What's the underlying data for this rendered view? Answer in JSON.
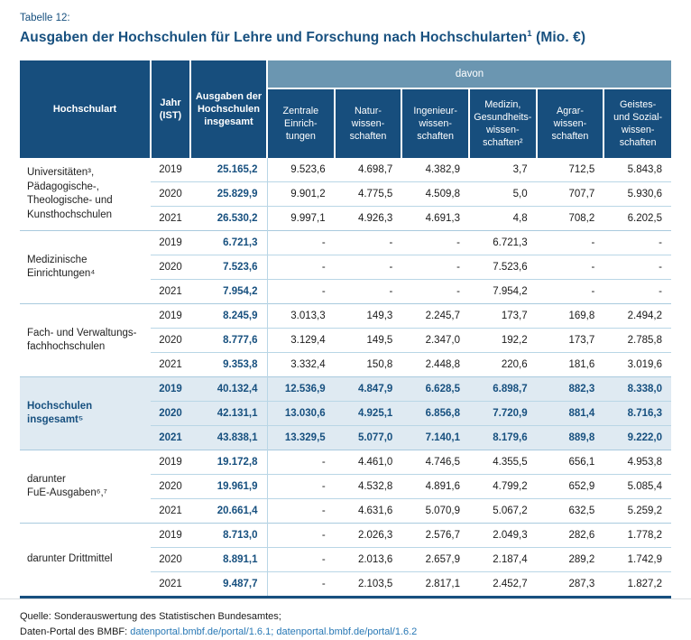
{
  "page": {
    "kicker": "Tabelle 12:",
    "title": "Ausgaben der Hochschulen für Lehre und Forschung nach Hochschularten",
    "title_sup": "1",
    "title_suffix": " (Mio. €)"
  },
  "colors": {
    "header_navy": "#174E7D",
    "davon_band": "#6B96B1",
    "highlight_row": "#dfeaf2",
    "separator_line": "#b9d6e6",
    "accent_text": "#17507F",
    "link_blue": "#2878B5"
  },
  "table": {
    "header": {
      "hochschulart": "Hochschulart",
      "jahr": "Jahr\n(IST)",
      "ausgaben": "Ausgaben der\nHochschulen\ninsgesamt",
      "davon": "davon",
      "columns": [
        "Zentrale\nEinrich-\ntungen",
        "Natur-\nwissen-\nschaften",
        "Ingenieur-\nwissen-\nschaften",
        "Medizin,\nGesundheits-\nwissen-\nschaften²",
        "Agrar-\nwissen-\nschaften",
        "Geistes-\nund Sozial-\nwissen-\nschaften"
      ]
    },
    "groups": [
      {
        "label": "Universitäten³,\nPädagogische-,\nTheologische- und\nKunsthochschulen",
        "highlight": false,
        "rows": [
          {
            "year": "2019",
            "values": [
              "25.165,2",
              "9.523,6",
              "4.698,7",
              "4.382,9",
              "3,7",
              "712,5",
              "5.843,8"
            ]
          },
          {
            "year": "2020",
            "values": [
              "25.829,9",
              "9.901,2",
              "4.775,5",
              "4.509,8",
              "5,0",
              "707,7",
              "5.930,6"
            ]
          },
          {
            "year": "2021",
            "values": [
              "26.530,2",
              "9.997,1",
              "4.926,3",
              "4.691,3",
              "4,8",
              "708,2",
              "6.202,5"
            ]
          }
        ]
      },
      {
        "label": "Medizinische\nEinrichtungen⁴",
        "highlight": false,
        "rows": [
          {
            "year": "2019",
            "values": [
              "6.721,3",
              "-",
              "-",
              "-",
              "6.721,3",
              "-",
              "-"
            ]
          },
          {
            "year": "2020",
            "values": [
              "7.523,6",
              "-",
              "-",
              "-",
              "7.523,6",
              "-",
              "-"
            ]
          },
          {
            "year": "2021",
            "values": [
              "7.954,2",
              "-",
              "-",
              "-",
              "7.954,2",
              "-",
              "-"
            ]
          }
        ]
      },
      {
        "label": "Fach- und Verwaltungs-\nfachhochschulen",
        "highlight": false,
        "rows": [
          {
            "year": "2019",
            "values": [
              "8.245,9",
              "3.013,3",
              "149,3",
              "2.245,7",
              "173,7",
              "169,8",
              "2.494,2"
            ]
          },
          {
            "year": "2020",
            "values": [
              "8.777,6",
              "3.129,4",
              "149,5",
              "2.347,0",
              "192,2",
              "173,7",
              "2.785,8"
            ]
          },
          {
            "year": "2021",
            "values": [
              "9.353,8",
              "3.332,4",
              "150,8",
              "2.448,8",
              "220,6",
              "181,6",
              "3.019,6"
            ]
          }
        ]
      },
      {
        "label": "Hochschulen insgesamt⁵",
        "highlight": true,
        "rows": [
          {
            "year": "2019",
            "values": [
              "40.132,4",
              "12.536,9",
              "4.847,9",
              "6.628,5",
              "6.898,7",
              "882,3",
              "8.338,0"
            ]
          },
          {
            "year": "2020",
            "values": [
              "42.131,1",
              "13.030,6",
              "4.925,1",
              "6.856,8",
              "7.720,9",
              "881,4",
              "8.716,3"
            ]
          },
          {
            "year": "2021",
            "values": [
              "43.838,1",
              "13.329,5",
              "5.077,0",
              "7.140,1",
              "8.179,6",
              "889,8",
              "9.222,0"
            ]
          }
        ]
      },
      {
        "label": "darunter\nFuE-Ausgaben⁶,⁷",
        "highlight": false,
        "rows": [
          {
            "year": "2019",
            "values": [
              "19.172,8",
              "-",
              "4.461,0",
              "4.746,5",
              "4.355,5",
              "656,1",
              "4.953,8"
            ]
          },
          {
            "year": "2020",
            "values": [
              "19.961,9",
              "-",
              "4.532,8",
              "4.891,6",
              "4.799,2",
              "652,9",
              "5.085,4"
            ]
          },
          {
            "year": "2021",
            "values": [
              "20.661,4",
              "-",
              "4.631,6",
              "5.070,9",
              "5.067,2",
              "632,5",
              "5.259,2"
            ]
          }
        ]
      },
      {
        "label": "darunter Drittmittel",
        "highlight": false,
        "rows": [
          {
            "year": "2019",
            "values": [
              "8.713,0",
              "-",
              "2.026,3",
              "2.576,7",
              "2.049,3",
              "282,6",
              "1.778,2"
            ]
          },
          {
            "year": "2020",
            "values": [
              "8.891,1",
              "-",
              "2.013,6",
              "2.657,9",
              "2.187,4",
              "289,2",
              "1.742,9"
            ]
          },
          {
            "year": "2021",
            "values": [
              "9.487,7",
              "-",
              "2.103,5",
              "2.817,1",
              "2.452,7",
              "287,3",
              "1.827,2"
            ]
          }
        ]
      }
    ]
  },
  "footer": {
    "line1": "Quelle: Sonderauswertung des Statistischen Bundesamtes;",
    "line2_prefix": "Daten-Portal des BMBF: ",
    "link1": "datenportal.bmbf.de/portal/1.6.1",
    "separator": "; ",
    "link2": "datenportal.bmbf.de/portal/1.6.2"
  }
}
